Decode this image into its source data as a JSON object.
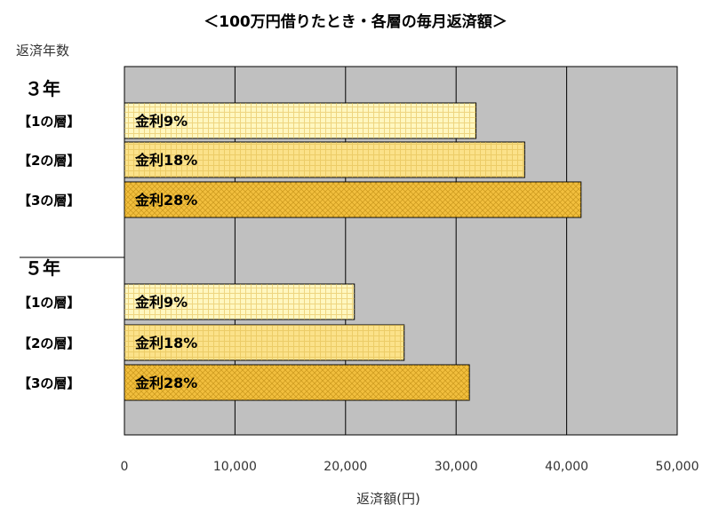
{
  "chart_data": {
    "type": "bar",
    "orientation": "horizontal",
    "title": "＜100万円借りたとき・各層の毎月返済額＞",
    "ylabel": "返済年数",
    "xlabel": "返済額(円)",
    "xlim": [
      0,
      50000
    ],
    "x_ticks": [
      "0",
      "10,000",
      "20,000",
      "30,000",
      "40,000",
      "50,000"
    ],
    "grid": true,
    "groups": [
      {
        "label": "３年",
        "bars": [
          {
            "category": "【1の層】",
            "label": "金利9%",
            "value": 31800,
            "color": "#fff7c0"
          },
          {
            "category": "【2の層】",
            "label": "金利18%",
            "value": 36200,
            "color": "#fbe28a"
          },
          {
            "category": "【3の層】",
            "label": "金利28%",
            "value": 41300,
            "color": "#f2bf3e"
          }
        ]
      },
      {
        "label": "５年",
        "bars": [
          {
            "category": "【1の層】",
            "label": "金利9%",
            "value": 20800,
            "color": "#fff7c0"
          },
          {
            "category": "【2の層】",
            "label": "金利18%",
            "value": 25300,
            "color": "#fbe28a"
          },
          {
            "category": "【3の層】",
            "label": "金利28%",
            "value": 31200,
            "color": "#f2bf3e"
          }
        ]
      }
    ],
    "colors": {
      "plot_background": "#c0c0c0",
      "gridline": "#000000"
    }
  }
}
